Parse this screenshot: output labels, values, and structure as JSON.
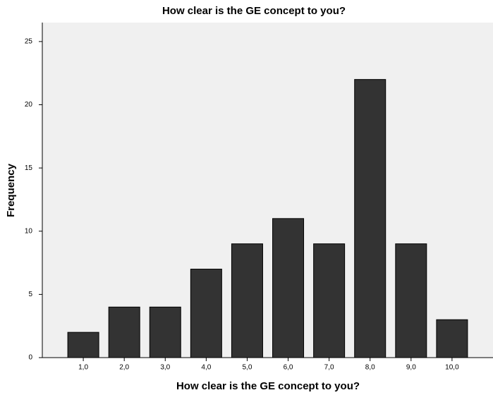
{
  "chart_data": {
    "type": "bar",
    "title": "How clear is the GE concept to you?",
    "xlabel": "How clear is the GE concept to you?",
    "ylabel": "Frequency",
    "categories": [
      "1,0",
      "2,0",
      "3,0",
      "4,0",
      "5,0",
      "6,0",
      "7,0",
      "8,0",
      "9,0",
      "10,0"
    ],
    "values": [
      2,
      4,
      4,
      7,
      9,
      11,
      9,
      22,
      9,
      3
    ],
    "color": "#333333",
    "ylim": [
      0,
      26.5
    ],
    "yticks": [
      0,
      5,
      10,
      15,
      20,
      25
    ],
    "grid": false
  }
}
